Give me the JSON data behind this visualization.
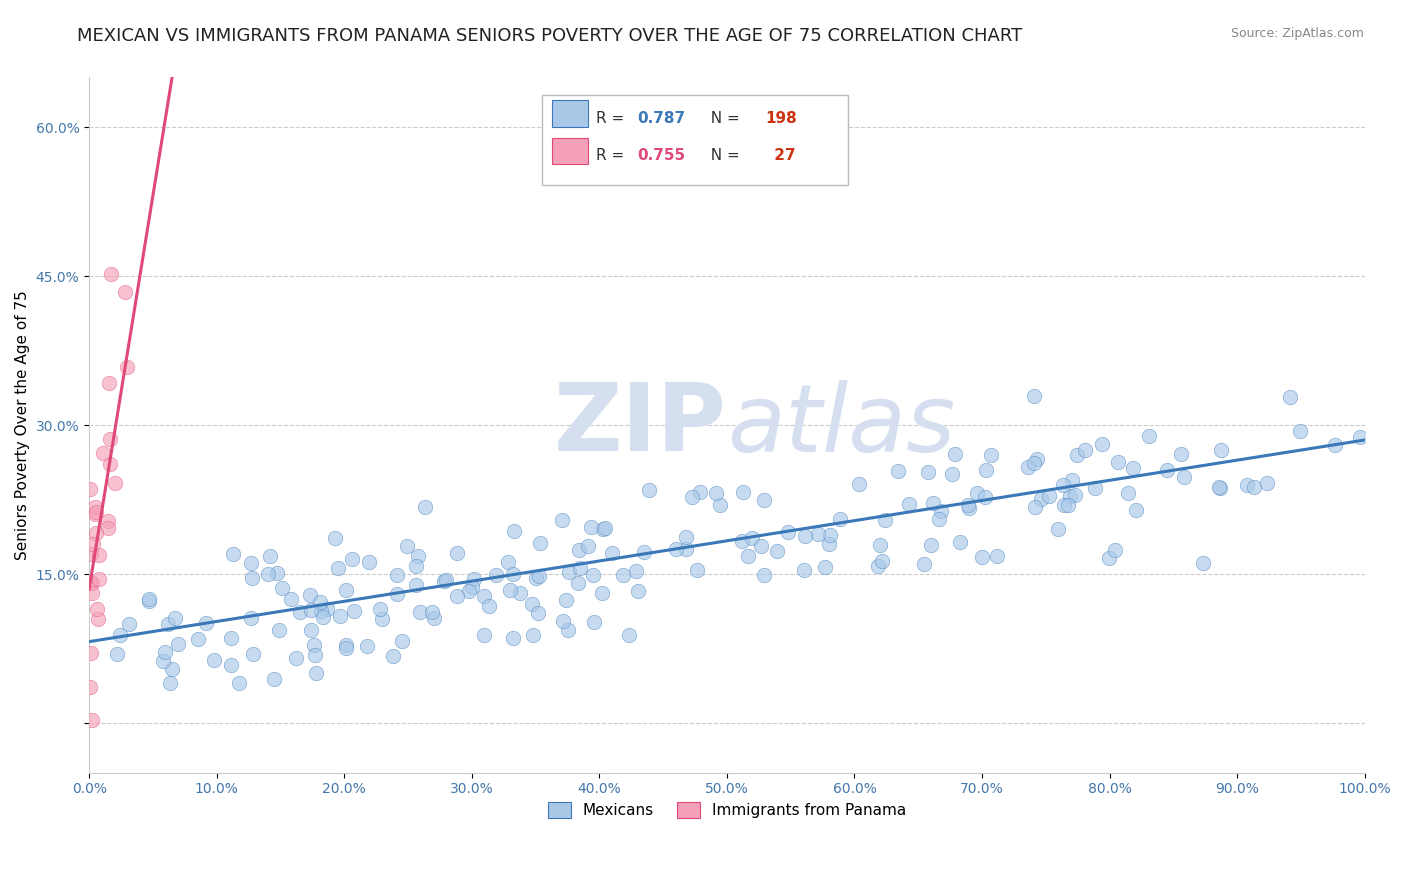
{
  "title": "MEXICAN VS IMMIGRANTS FROM PANAMA SENIORS POVERTY OVER THE AGE OF 75 CORRELATION CHART",
  "source": "Source: ZipAtlas.com",
  "ylabel": "Seniors Poverty Over the Age of 75",
  "xlabel": "",
  "xlim": [
    0.0,
    1.0
  ],
  "ylim": [
    -0.05,
    0.65
  ],
  "xticks": [
    0.0,
    0.1,
    0.2,
    0.3,
    0.4,
    0.5,
    0.6,
    0.7,
    0.8,
    0.9,
    1.0
  ],
  "xticklabels": [
    "0.0%",
    "10.0%",
    "20.0%",
    "30.0%",
    "40.0%",
    "50.0%",
    "60.0%",
    "70.0%",
    "80.0%",
    "90.0%",
    "100.0%"
  ],
  "yticks": [
    0.0,
    0.15,
    0.3,
    0.45,
    0.6
  ],
  "yticklabels": [
    "",
    "15.0%",
    "30.0%",
    "45.0%",
    "60.0%"
  ],
  "legend_r1": "R = 0.787",
  "legend_n1": "N = 198",
  "legend_r2": "R = 0.755",
  "legend_n2": "N =  27",
  "color_mexican": "#a8c8e8",
  "color_panama": "#f4a0b8",
  "color_line_mexican": "#3a78b8",
  "color_line_panama": "#e04878",
  "watermark_zip": "ZIP",
  "watermark_atlas": "atlas",
  "watermark_color": "#d5dff0",
  "background_color": "#ffffff",
  "grid_color": "#cccccc",
  "title_fontsize": 13,
  "axis_label_fontsize": 11,
  "tick_fontsize": 10,
  "scatter_size": 110,
  "scatter_alpha": 0.65,
  "mex_line_start_x": 0.0,
  "mex_line_start_y": 0.082,
  "mex_line_end_x": 1.0,
  "mex_line_end_y": 0.285,
  "pan_line_start_x": 0.0,
  "pan_line_start_y": 0.135,
  "pan_line_end_x": 0.065,
  "pan_line_end_y": 0.65
}
